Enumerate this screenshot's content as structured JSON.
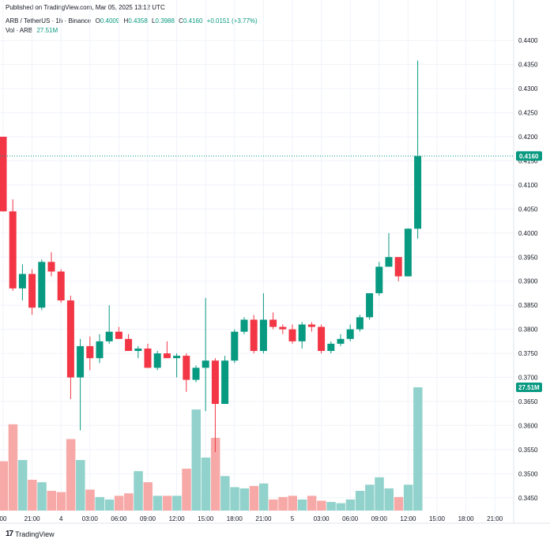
{
  "header": {
    "published": "Published on TradingView.com, Mar 05, 2025 13:12 UTC",
    "symbol": "ARB / TetherUS · 1h · Binance",
    "o_label": "O",
    "o_value": "0.4009",
    "h_label": "H",
    "h_value": "0.4358",
    "l_label": "L",
    "l_value": "0.3988",
    "c_label": "C",
    "c_value": "0.4160",
    "change": "+0.0151 (+3.77%)",
    "vol_label": "Vol · ARB",
    "vol_value": "27.51M"
  },
  "footer": {
    "brand": "TradingView"
  },
  "colors": {
    "up": "#089981",
    "down": "#f23645",
    "vol_up": "#92d2cc",
    "vol_down": "#f7a9a7"
  },
  "chart_data": {
    "type": "candlestick",
    "symbol": "ARB / TetherUS",
    "interval": "1h",
    "exchange": "Binance",
    "price_axis": {
      "ylim": [
        0.3425,
        0.4425
      ],
      "ticks": [
        "0.4400",
        "0.4350",
        "0.4300",
        "0.4250",
        "0.4200",
        "0.4150",
        "0.4100",
        "0.4050",
        "0.4000",
        "0.3950",
        "0.3900",
        "0.3850",
        "0.3800",
        "0.3750",
        "0.3700",
        "0.3650",
        "0.3600",
        "0.3550",
        "0.3500",
        "0.3450"
      ]
    },
    "last_price_label": "0.4160",
    "volume_label": "27.51M",
    "time_axis": {
      "ticks": [
        {
          "i": 0,
          "label": "00"
        },
        {
          "i": 3,
          "label": "21:00"
        },
        {
          "i": 6,
          "label": "4"
        },
        {
          "i": 9,
          "label": "03:00"
        },
        {
          "i": 12,
          "label": "06:00"
        },
        {
          "i": 15,
          "label": "09:00"
        },
        {
          "i": 18,
          "label": "12:00"
        },
        {
          "i": 21,
          "label": "15:00"
        },
        {
          "i": 24,
          "label": "18:00"
        },
        {
          "i": 27,
          "label": "21:00"
        },
        {
          "i": 30,
          "label": "5"
        },
        {
          "i": 33,
          "label": "03:00"
        },
        {
          "i": 36,
          "label": "06:00"
        },
        {
          "i": 39,
          "label": "09:00"
        },
        {
          "i": 42,
          "label": "12:00"
        },
        {
          "i": 45,
          "label": "15:00"
        },
        {
          "i": 48,
          "label": "18:00"
        },
        {
          "i": 51,
          "label": "21:00"
        }
      ]
    },
    "candles": [
      {
        "o": 0.42,
        "h": 0.42,
        "l": 0.4045,
        "c": 0.4045,
        "v": 0.4
      },
      {
        "o": 0.4045,
        "h": 0.407,
        "l": 0.388,
        "c": 0.3885,
        "v": 0.7
      },
      {
        "o": 0.3885,
        "h": 0.3935,
        "l": 0.386,
        "c": 0.3915,
        "v": 0.41
      },
      {
        "o": 0.3915,
        "h": 0.3925,
        "l": 0.383,
        "c": 0.3845,
        "v": 0.25
      },
      {
        "o": 0.3845,
        "h": 0.3945,
        "l": 0.384,
        "c": 0.394,
        "v": 0.23
      },
      {
        "o": 0.394,
        "h": 0.396,
        "l": 0.391,
        "c": 0.392,
        "v": 0.16
      },
      {
        "o": 0.392,
        "h": 0.3925,
        "l": 0.3855,
        "c": 0.386,
        "v": 0.15
      },
      {
        "o": 0.386,
        "h": 0.387,
        "l": 0.3655,
        "c": 0.37,
        "v": 0.58
      },
      {
        "o": 0.37,
        "h": 0.378,
        "l": 0.359,
        "c": 0.3765,
        "v": 0.41
      },
      {
        "o": 0.3765,
        "h": 0.3785,
        "l": 0.3715,
        "c": 0.374,
        "v": 0.17
      },
      {
        "o": 0.374,
        "h": 0.379,
        "l": 0.373,
        "c": 0.3775,
        "v": 0.11
      },
      {
        "o": 0.3775,
        "h": 0.385,
        "l": 0.377,
        "c": 0.3795,
        "v": 0.09
      },
      {
        "o": 0.3795,
        "h": 0.3805,
        "l": 0.378,
        "c": 0.378,
        "v": 0.12
      },
      {
        "o": 0.378,
        "h": 0.379,
        "l": 0.3755,
        "c": 0.3755,
        "v": 0.14
      },
      {
        "o": 0.3755,
        "h": 0.3765,
        "l": 0.374,
        "c": 0.376,
        "v": 0.32
      },
      {
        "o": 0.376,
        "h": 0.377,
        "l": 0.372,
        "c": 0.372,
        "v": 0.23
      },
      {
        "o": 0.372,
        "h": 0.3755,
        "l": 0.3715,
        "c": 0.375,
        "v": 0.12
      },
      {
        "o": 0.375,
        "h": 0.3775,
        "l": 0.374,
        "c": 0.374,
        "v": 0.12
      },
      {
        "o": 0.374,
        "h": 0.375,
        "l": 0.37,
        "c": 0.3745,
        "v": 0.12
      },
      {
        "o": 0.3745,
        "h": 0.375,
        "l": 0.367,
        "c": 0.3695,
        "v": 0.34
      },
      {
        "o": 0.3695,
        "h": 0.3725,
        "l": 0.369,
        "c": 0.372,
        "v": 0.82
      },
      {
        "o": 0.372,
        "h": 0.3865,
        "l": 0.363,
        "c": 0.3735,
        "v": 0.43
      },
      {
        "o": 0.3735,
        "h": 0.374,
        "l": 0.3545,
        "c": 0.3645,
        "v": 0.59
      },
      {
        "o": 0.3645,
        "h": 0.3745,
        "l": 0.3645,
        "c": 0.3735,
        "v": 0.28
      },
      {
        "o": 0.3735,
        "h": 0.38,
        "l": 0.373,
        "c": 0.3795,
        "v": 0.19
      },
      {
        "o": 0.3795,
        "h": 0.3825,
        "l": 0.379,
        "c": 0.382,
        "v": 0.18
      },
      {
        "o": 0.382,
        "h": 0.383,
        "l": 0.375,
        "c": 0.3755,
        "v": 0.2
      },
      {
        "o": 0.3755,
        "h": 0.3875,
        "l": 0.375,
        "c": 0.382,
        "v": 0.22
      },
      {
        "o": 0.382,
        "h": 0.3835,
        "l": 0.38,
        "c": 0.3805,
        "v": 0.09
      },
      {
        "o": 0.3805,
        "h": 0.381,
        "l": 0.379,
        "c": 0.38,
        "v": 0.11
      },
      {
        "o": 0.38,
        "h": 0.381,
        "l": 0.377,
        "c": 0.3775,
        "v": 0.12
      },
      {
        "o": 0.3775,
        "h": 0.3815,
        "l": 0.376,
        "c": 0.381,
        "v": 0.09
      },
      {
        "o": 0.381,
        "h": 0.3815,
        "l": 0.3795,
        "c": 0.3805,
        "v": 0.12
      },
      {
        "o": 0.3805,
        "h": 0.381,
        "l": 0.375,
        "c": 0.3755,
        "v": 0.08
      },
      {
        "o": 0.3755,
        "h": 0.3775,
        "l": 0.375,
        "c": 0.377,
        "v": 0.07
      },
      {
        "o": 0.377,
        "h": 0.379,
        "l": 0.3765,
        "c": 0.378,
        "v": 0.06
      },
      {
        "o": 0.378,
        "h": 0.381,
        "l": 0.3775,
        "c": 0.38,
        "v": 0.09
      },
      {
        "o": 0.38,
        "h": 0.383,
        "l": 0.3795,
        "c": 0.3825,
        "v": 0.16
      },
      {
        "o": 0.3825,
        "h": 0.3875,
        "l": 0.382,
        "c": 0.3875,
        "v": 0.21
      },
      {
        "o": 0.3875,
        "h": 0.394,
        "l": 0.387,
        "c": 0.393,
        "v": 0.27
      },
      {
        "o": 0.393,
        "h": 0.4,
        "l": 0.393,
        "c": 0.395,
        "v": 0.18
      },
      {
        "o": 0.395,
        "h": 0.395,
        "l": 0.39,
        "c": 0.391,
        "v": 0.11
      },
      {
        "o": 0.391,
        "h": 0.401,
        "l": 0.391,
        "c": 0.4009,
        "v": 0.21
      },
      {
        "o": 0.4009,
        "h": 0.4358,
        "l": 0.3988,
        "c": 0.416,
        "v": 1.0
      }
    ]
  }
}
